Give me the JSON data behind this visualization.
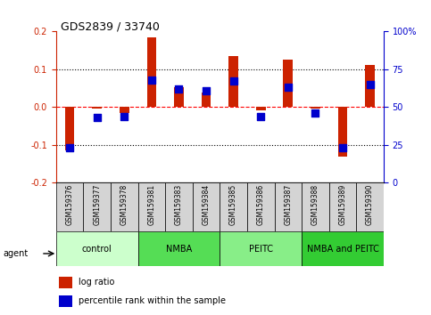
{
  "title": "GDS2839 / 33740",
  "samples": [
    "GSM159376",
    "GSM159377",
    "GSM159378",
    "GSM159381",
    "GSM159383",
    "GSM159384",
    "GSM159385",
    "GSM159386",
    "GSM159387",
    "GSM159388",
    "GSM159389",
    "GSM159390"
  ],
  "log_ratio": [
    -0.115,
    -0.005,
    -0.015,
    0.185,
    0.052,
    0.038,
    0.135,
    -0.008,
    0.125,
    -0.005,
    -0.13,
    0.112
  ],
  "percentile_rank": [
    23,
    43,
    44,
    68,
    62,
    61,
    67,
    44,
    63,
    46,
    23,
    65
  ],
  "groups": [
    {
      "label": "control",
      "start": 0,
      "end": 3,
      "color": "#ccffcc"
    },
    {
      "label": "NMBA",
      "start": 3,
      "end": 6,
      "color": "#55dd55"
    },
    {
      "label": "PEITC",
      "start": 6,
      "end": 9,
      "color": "#88ee88"
    },
    {
      "label": "NMBA and PEITC",
      "start": 9,
      "end": 12,
      "color": "#33cc33"
    }
  ],
  "ylim": [
    -0.2,
    0.2
  ],
  "yticks_left": [
    -0.2,
    -0.1,
    0.0,
    0.1,
    0.2
  ],
  "yticks_right": [
    0,
    25,
    50,
    75,
    100
  ],
  "bar_color": "#cc2200",
  "dot_color": "#0000cc",
  "bar_width": 0.35,
  "dot_size": 35,
  "legend_items": [
    "log ratio",
    "percentile rank within the sample"
  ]
}
